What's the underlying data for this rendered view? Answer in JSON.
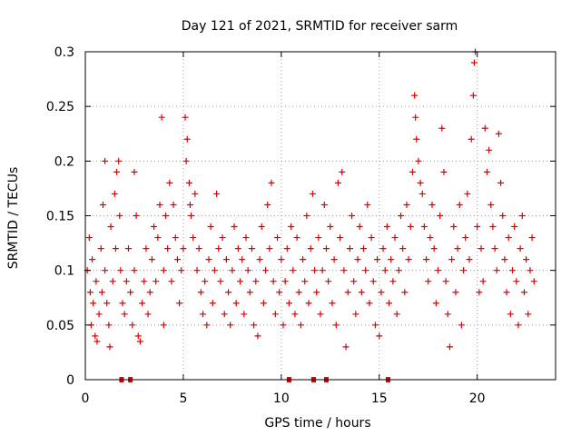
{
  "chart_data": {
    "type": "scatter",
    "title": "Day 121 of 2021, SRMTID for receiver sarm",
    "xlabel": "GPS time / hours",
    "ylabel": "SRMTID / TECUs",
    "xlim": [
      0,
      24
    ],
    "ylim": [
      0,
      0.3
    ],
    "x_ticks": [
      0,
      5,
      10,
      15,
      20
    ],
    "x_tick_labels": [
      "0",
      "5",
      "10",
      "15",
      "20"
    ],
    "y_ticks": [
      0,
      0.05,
      0.1,
      0.15,
      0.2,
      0.25,
      0.3
    ],
    "y_tick_labels": [
      "0",
      "0.05",
      "0.1",
      "0.15",
      "0.2",
      "0.25",
      "0.3"
    ],
    "grid": true,
    "marker": "plus",
    "color": "#e00000",
    "zero_markers_x": [
      1.85,
      2.3,
      10.4,
      11.65,
      12.3,
      15.45
    ],
    "points": [
      [
        0.1,
        0.1
      ],
      [
        0.2,
        0.13
      ],
      [
        0.25,
        0.08
      ],
      [
        0.3,
        0.05
      ],
      [
        0.35,
        0.11
      ],
      [
        0.4,
        0.07
      ],
      [
        0.5,
        0.04
      ],
      [
        0.55,
        0.09
      ],
      [
        0.6,
        0.035
      ],
      [
        0.7,
        0.06
      ],
      [
        0.8,
        0.12
      ],
      [
        0.85,
        0.08
      ],
      [
        0.9,
        0.16
      ],
      [
        1.0,
        0.1
      ],
      [
        1.0,
        0.2
      ],
      [
        1.1,
        0.07
      ],
      [
        1.2,
        0.05
      ],
      [
        1.25,
        0.03
      ],
      [
        1.3,
        0.14
      ],
      [
        1.4,
        0.09
      ],
      [
        1.5,
        0.17
      ],
      [
        1.55,
        0.12
      ],
      [
        1.6,
        0.19
      ],
      [
        1.7,
        0.2
      ],
      [
        1.75,
        0.15
      ],
      [
        1.8,
        0.1
      ],
      [
        1.9,
        0.07
      ],
      [
        2.0,
        0.06
      ],
      [
        2.1,
        0.09
      ],
      [
        2.2,
        0.12
      ],
      [
        2.3,
        0.08
      ],
      [
        2.4,
        0.05
      ],
      [
        2.5,
        0.1
      ],
      [
        2.5,
        0.19
      ],
      [
        2.6,
        0.15
      ],
      [
        2.7,
        0.04
      ],
      [
        2.8,
        0.035
      ],
      [
        2.9,
        0.07
      ],
      [
        3.0,
        0.09
      ],
      [
        3.1,
        0.12
      ],
      [
        3.2,
        0.06
      ],
      [
        3.3,
        0.08
      ],
      [
        3.4,
        0.11
      ],
      [
        3.5,
        0.14
      ],
      [
        3.6,
        0.09
      ],
      [
        3.7,
        0.13
      ],
      [
        3.8,
        0.16
      ],
      [
        3.9,
        0.24
      ],
      [
        4.0,
        0.1
      ],
      [
        4.0,
        0.05
      ],
      [
        4.1,
        0.15
      ],
      [
        4.2,
        0.12
      ],
      [
        4.3,
        0.18
      ],
      [
        4.4,
        0.09
      ],
      [
        4.5,
        0.16
      ],
      [
        4.6,
        0.13
      ],
      [
        4.7,
        0.11
      ],
      [
        4.8,
        0.07
      ],
      [
        4.9,
        0.1
      ],
      [
        5.0,
        0.12
      ],
      [
        5.1,
        0.24
      ],
      [
        5.15,
        0.2
      ],
      [
        5.2,
        0.22
      ],
      [
        5.3,
        0.18
      ],
      [
        5.35,
        0.16
      ],
      [
        5.4,
        0.15
      ],
      [
        5.5,
        0.13
      ],
      [
        5.6,
        0.17
      ],
      [
        5.7,
        0.1
      ],
      [
        5.8,
        0.12
      ],
      [
        5.9,
        0.08
      ],
      [
        6.0,
        0.06
      ],
      [
        6.1,
        0.09
      ],
      [
        6.2,
        0.05
      ],
      [
        6.3,
        0.11
      ],
      [
        6.4,
        0.14
      ],
      [
        6.5,
        0.07
      ],
      [
        6.6,
        0.1
      ],
      [
        6.7,
        0.17
      ],
      [
        6.8,
        0.12
      ],
      [
        6.9,
        0.09
      ],
      [
        7.0,
        0.13
      ],
      [
        7.1,
        0.06
      ],
      [
        7.2,
        0.11
      ],
      [
        7.3,
        0.08
      ],
      [
        7.4,
        0.05
      ],
      [
        7.5,
        0.1
      ],
      [
        7.6,
        0.14
      ],
      [
        7.7,
        0.07
      ],
      [
        7.8,
        0.12
      ],
      [
        7.9,
        0.09
      ],
      [
        8.0,
        0.11
      ],
      [
        8.1,
        0.06
      ],
      [
        8.2,
        0.13
      ],
      [
        8.3,
        0.1
      ],
      [
        8.4,
        0.08
      ],
      [
        8.5,
        0.12
      ],
      [
        8.6,
        0.05
      ],
      [
        8.7,
        0.09
      ],
      [
        8.8,
        0.04
      ],
      [
        8.9,
        0.11
      ],
      [
        9.0,
        0.14
      ],
      [
        9.1,
        0.07
      ],
      [
        9.2,
        0.1
      ],
      [
        9.3,
        0.16
      ],
      [
        9.4,
        0.12
      ],
      [
        9.5,
        0.18
      ],
      [
        9.6,
        0.09
      ],
      [
        9.7,
        0.06
      ],
      [
        9.8,
        0.13
      ],
      [
        9.9,
        0.08
      ],
      [
        10.0,
        0.11
      ],
      [
        10.1,
        0.05
      ],
      [
        10.2,
        0.09
      ],
      [
        10.3,
        0.12
      ],
      [
        10.4,
        0.07
      ],
      [
        10.5,
        0.14
      ],
      [
        10.6,
        0.1
      ],
      [
        10.7,
        0.06
      ],
      [
        10.8,
        0.13
      ],
      [
        10.9,
        0.08
      ],
      [
        11.0,
        0.05
      ],
      [
        11.1,
        0.11
      ],
      [
        11.2,
        0.09
      ],
      [
        11.3,
        0.15
      ],
      [
        11.4,
        0.07
      ],
      [
        11.5,
        0.12
      ],
      [
        11.6,
        0.17
      ],
      [
        11.7,
        0.1
      ],
      [
        11.8,
        0.08
      ],
      [
        11.9,
        0.13
      ],
      [
        12.0,
        0.06
      ],
      [
        12.1,
        0.1
      ],
      [
        12.2,
        0.16
      ],
      [
        12.3,
        0.12
      ],
      [
        12.4,
        0.09
      ],
      [
        12.5,
        0.14
      ],
      [
        12.6,
        0.07
      ],
      [
        12.7,
        0.11
      ],
      [
        12.8,
        0.05
      ],
      [
        12.9,
        0.18
      ],
      [
        13.0,
        0.13
      ],
      [
        13.1,
        0.19
      ],
      [
        13.2,
        0.1
      ],
      [
        13.3,
        0.03
      ],
      [
        13.4,
        0.08
      ],
      [
        13.5,
        0.12
      ],
      [
        13.6,
        0.15
      ],
      [
        13.7,
        0.09
      ],
      [
        13.8,
        0.06
      ],
      [
        13.9,
        0.11
      ],
      [
        14.0,
        0.14
      ],
      [
        14.1,
        0.08
      ],
      [
        14.2,
        0.12
      ],
      [
        14.3,
        0.1
      ],
      [
        14.4,
        0.16
      ],
      [
        14.5,
        0.07
      ],
      [
        14.6,
        0.13
      ],
      [
        14.7,
        0.09
      ],
      [
        14.8,
        0.05
      ],
      [
        14.9,
        0.11
      ],
      [
        15.0,
        0.04
      ],
      [
        15.1,
        0.08
      ],
      [
        15.2,
        0.12
      ],
      [
        15.3,
        0.1
      ],
      [
        15.4,
        0.14
      ],
      [
        15.5,
        0.07
      ],
      [
        15.6,
        0.11
      ],
      [
        15.7,
        0.09
      ],
      [
        15.8,
        0.13
      ],
      [
        15.9,
        0.06
      ],
      [
        16.0,
        0.1
      ],
      [
        16.1,
        0.15
      ],
      [
        16.2,
        0.12
      ],
      [
        16.3,
        0.08
      ],
      [
        16.4,
        0.16
      ],
      [
        16.5,
        0.11
      ],
      [
        16.6,
        0.14
      ],
      [
        16.7,
        0.19
      ],
      [
        16.8,
        0.26
      ],
      [
        16.85,
        0.24
      ],
      [
        16.9,
        0.22
      ],
      [
        17.0,
        0.2
      ],
      [
        17.1,
        0.18
      ],
      [
        17.2,
        0.17
      ],
      [
        17.3,
        0.14
      ],
      [
        17.4,
        0.11
      ],
      [
        17.5,
        0.09
      ],
      [
        17.6,
        0.13
      ],
      [
        17.7,
        0.16
      ],
      [
        17.8,
        0.12
      ],
      [
        17.9,
        0.07
      ],
      [
        18.0,
        0.1
      ],
      [
        18.1,
        0.15
      ],
      [
        18.2,
        0.23
      ],
      [
        18.3,
        0.19
      ],
      [
        18.4,
        0.09
      ],
      [
        18.5,
        0.06
      ],
      [
        18.6,
        0.03
      ],
      [
        18.7,
        0.11
      ],
      [
        18.8,
        0.14
      ],
      [
        18.9,
        0.08
      ],
      [
        19.0,
        0.12
      ],
      [
        19.1,
        0.16
      ],
      [
        19.2,
        0.05
      ],
      [
        19.3,
        0.1
      ],
      [
        19.4,
        0.13
      ],
      [
        19.5,
        0.17
      ],
      [
        19.6,
        0.11
      ],
      [
        19.7,
        0.22
      ],
      [
        19.8,
        0.26
      ],
      [
        19.85,
        0.29
      ],
      [
        19.9,
        0.3
      ],
      [
        20.0,
        0.14
      ],
      [
        20.1,
        0.08
      ],
      [
        20.2,
        0.12
      ],
      [
        20.3,
        0.09
      ],
      [
        20.4,
        0.23
      ],
      [
        20.5,
        0.19
      ],
      [
        20.6,
        0.21
      ],
      [
        20.7,
        0.16
      ],
      [
        20.8,
        0.14
      ],
      [
        20.9,
        0.12
      ],
      [
        21.0,
        0.1
      ],
      [
        21.1,
        0.225
      ],
      [
        21.2,
        0.18
      ],
      [
        21.3,
        0.15
      ],
      [
        21.4,
        0.11
      ],
      [
        21.5,
        0.08
      ],
      [
        21.6,
        0.13
      ],
      [
        21.7,
        0.06
      ],
      [
        21.8,
        0.1
      ],
      [
        21.9,
        0.14
      ],
      [
        22.0,
        0.09
      ],
      [
        22.1,
        0.05
      ],
      [
        22.2,
        0.12
      ],
      [
        22.3,
        0.15
      ],
      [
        22.4,
        0.08
      ],
      [
        22.5,
        0.11
      ],
      [
        22.6,
        0.06
      ],
      [
        22.7,
        0.1
      ],
      [
        22.8,
        0.13
      ],
      [
        22.9,
        0.09
      ]
    ]
  }
}
